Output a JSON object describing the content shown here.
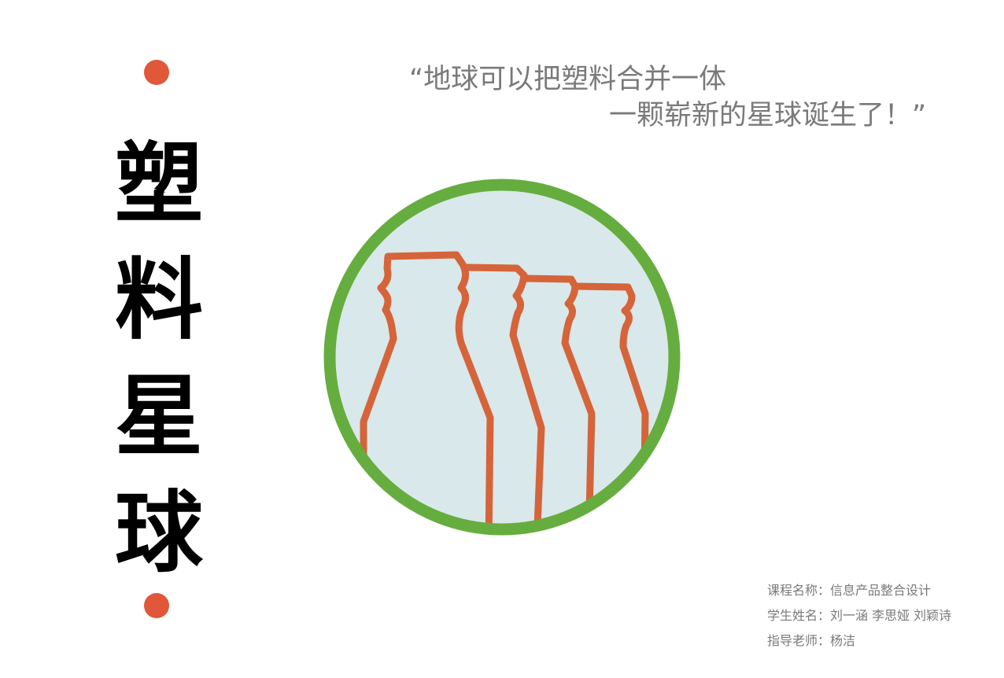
{
  "colors": {
    "accent_dot": "#e0573a",
    "ring": "#66ad3f",
    "planet_fill": "#d9e8ea",
    "bottle_stroke": "#d5643a",
    "quote_text": "#7a7a7a",
    "title_text": "#000000"
  },
  "title": {
    "chars": [
      "塑",
      "料",
      "星",
      "球"
    ]
  },
  "quote": {
    "line1": "“地球可以把塑料合并一体",
    "line2": "一颗崭新的星球诞生了！”"
  },
  "emblem": {
    "icon": "plastic-bottles-planet-icon",
    "bottle_count": 4
  },
  "credits": {
    "course": "课程名称：信息产品整合设计",
    "students": "学生姓名：刘一涵  李思娅  刘颖诗",
    "advisor": "指导老师：杨洁"
  }
}
